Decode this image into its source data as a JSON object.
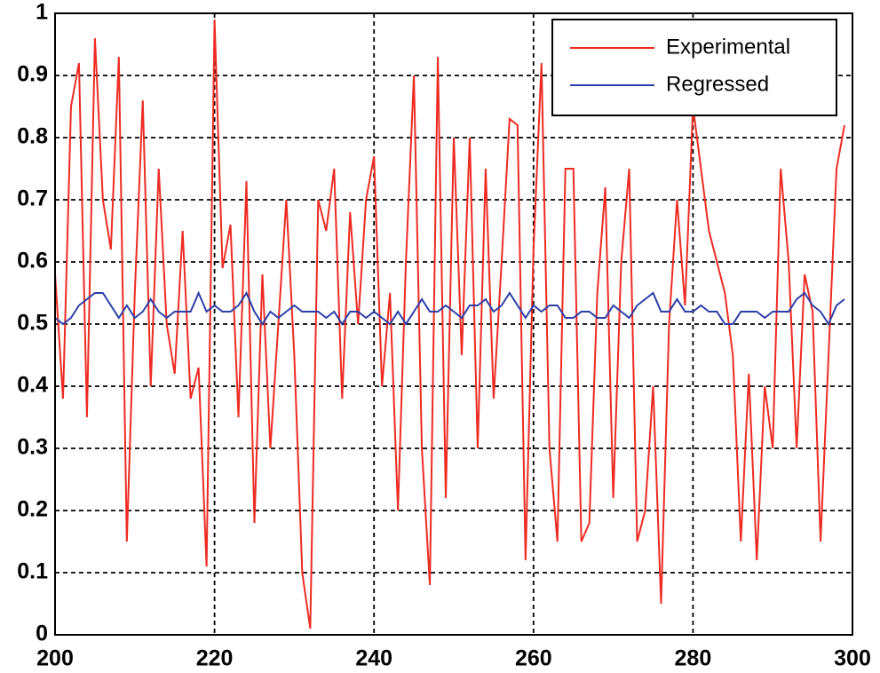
{
  "chart_data": {
    "type": "line",
    "x": [
      200,
      201,
      202,
      203,
      204,
      205,
      206,
      207,
      208,
      209,
      210,
      211,
      212,
      213,
      214,
      215,
      216,
      217,
      218,
      219,
      220,
      221,
      222,
      223,
      224,
      225,
      226,
      227,
      228,
      229,
      230,
      231,
      232,
      233,
      234,
      235,
      236,
      237,
      238,
      239,
      240,
      241,
      242,
      243,
      244,
      245,
      246,
      247,
      248,
      249,
      250,
      251,
      252,
      253,
      254,
      255,
      256,
      257,
      258,
      259,
      260,
      261,
      262,
      263,
      264,
      265,
      266,
      267,
      268,
      269,
      270,
      271,
      272,
      273,
      274,
      275,
      276,
      277,
      278,
      279,
      280,
      281,
      282,
      283,
      284,
      285,
      286,
      287,
      288,
      289,
      290,
      291,
      292,
      293,
      294,
      295,
      296,
      297,
      298,
      299
    ],
    "series": [
      {
        "name": "Experimental",
        "color": "#ee2b22",
        "values": [
          0.58,
          0.38,
          0.85,
          0.92,
          0.35,
          0.96,
          0.7,
          0.62,
          0.93,
          0.15,
          0.55,
          0.86,
          0.4,
          0.75,
          0.5,
          0.42,
          0.65,
          0.38,
          0.43,
          0.11,
          0.99,
          0.59,
          0.66,
          0.35,
          0.73,
          0.18,
          0.58,
          0.3,
          0.5,
          0.7,
          0.45,
          0.1,
          0.01,
          0.7,
          0.65,
          0.75,
          0.38,
          0.68,
          0.5,
          0.7,
          0.77,
          0.4,
          0.55,
          0.2,
          0.6,
          0.9,
          0.3,
          0.08,
          0.93,
          0.22,
          0.8,
          0.45,
          0.8,
          0.3,
          0.75,
          0.38,
          0.6,
          0.83,
          0.82,
          0.12,
          0.62,
          0.92,
          0.3,
          0.15,
          0.75,
          0.75,
          0.15,
          0.18,
          0.55,
          0.72,
          0.22,
          0.6,
          0.75,
          0.15,
          0.2,
          0.4,
          0.05,
          0.5,
          0.7,
          0.53,
          0.85,
          0.75,
          0.65,
          0.6,
          0.55,
          0.45,
          0.15,
          0.42,
          0.12,
          0.4,
          0.3,
          0.75,
          0.6,
          0.3,
          0.58,
          0.52,
          0.15,
          0.45,
          0.75,
          0.82
        ]
      },
      {
        "name": "Regressed",
        "color": "#2b3fa8",
        "values": [
          0.51,
          0.5,
          0.51,
          0.53,
          0.54,
          0.55,
          0.55,
          0.53,
          0.51,
          0.53,
          0.51,
          0.52,
          0.54,
          0.52,
          0.51,
          0.52,
          0.52,
          0.52,
          0.55,
          0.52,
          0.53,
          0.52,
          0.52,
          0.53,
          0.55,
          0.52,
          0.5,
          0.52,
          0.51,
          0.52,
          0.53,
          0.52,
          0.52,
          0.52,
          0.51,
          0.52,
          0.5,
          0.52,
          0.52,
          0.51,
          0.52,
          0.51,
          0.5,
          0.52,
          0.5,
          0.52,
          0.54,
          0.52,
          0.52,
          0.53,
          0.52,
          0.51,
          0.53,
          0.53,
          0.54,
          0.52,
          0.53,
          0.55,
          0.53,
          0.51,
          0.53,
          0.52,
          0.53,
          0.53,
          0.51,
          0.51,
          0.52,
          0.52,
          0.51,
          0.51,
          0.53,
          0.52,
          0.51,
          0.53,
          0.54,
          0.55,
          0.52,
          0.52,
          0.54,
          0.52,
          0.52,
          0.53,
          0.52,
          0.52,
          0.5,
          0.5,
          0.52,
          0.52,
          0.52,
          0.51,
          0.52,
          0.52,
          0.52,
          0.54,
          0.55,
          0.53,
          0.52,
          0.5,
          0.53,
          0.54
        ]
      }
    ],
    "xlim": [
      200,
      300
    ],
    "xticks": [
      200,
      220,
      240,
      260,
      280,
      300
    ],
    "ylim": [
      0,
      1
    ],
    "yticks": [
      0,
      0.1,
      0.2,
      0.3,
      0.4,
      0.5,
      0.6,
      0.7,
      0.8,
      0.9,
      1
    ],
    "grid": true,
    "legend": "upper-right"
  }
}
